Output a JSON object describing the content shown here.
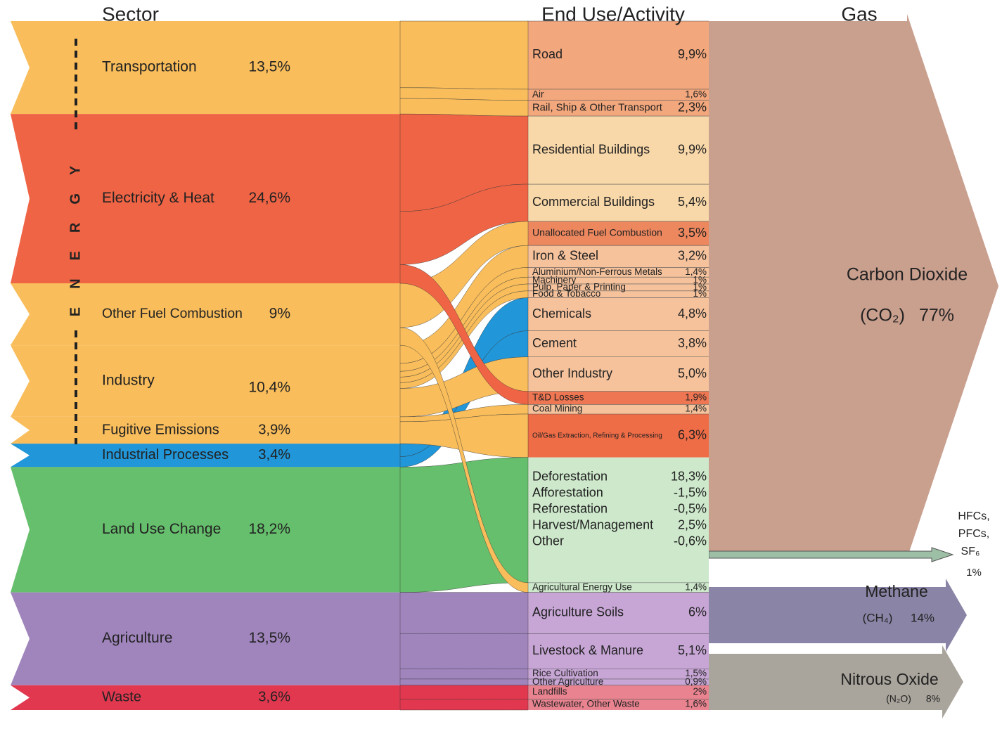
{
  "chart_data": {
    "type": "sankey",
    "titles": [
      "Sector",
      "End Use/Activity",
      "Gas"
    ],
    "energy_label": "ENERGY",
    "sectors": [
      {
        "name": "Transportation",
        "value": 13.5,
        "value_label": "13,5%",
        "color": "#f9bd5b"
      },
      {
        "name": "Electricity & Heat",
        "value": 24.6,
        "value_label": "24,6%",
        "color": "#ef6445"
      },
      {
        "name": "Other Fuel Combustion",
        "value": 9,
        "value_label": "9%",
        "color": "#f9bd5b"
      },
      {
        "name": "Industry",
        "value": 10.4,
        "value_label": "10,4%",
        "color": "#f9bd5b"
      },
      {
        "name": "Fugitive Emissions",
        "value": 3.9,
        "value_label": "3,9%",
        "color": "#f9bd5b"
      },
      {
        "name": "Industrial Processes",
        "value": 3.4,
        "value_label": "3,4%",
        "color": "#2196d8"
      },
      {
        "name": "Land Use Change",
        "value": 18.2,
        "value_label": "18,2%",
        "color": "#66bf6c"
      },
      {
        "name": "Agriculture",
        "value": 13.5,
        "value_label": "13,5%",
        "color": "#a085bd"
      },
      {
        "name": "Waste",
        "value": 3.6,
        "value_label": "3,6%",
        "color": "#e2384f"
      }
    ],
    "end_uses": [
      {
        "name": "Road",
        "value": 9.9,
        "value_label": "9,9%",
        "color": "#f2a77c"
      },
      {
        "name": "Air",
        "value": 1.6,
        "value_label": "1,6%",
        "color": "#f2a77c"
      },
      {
        "name": "Rail, Ship & Other Transport",
        "value": 2.3,
        "value_label": "2,3%",
        "color": "#f2a77c"
      },
      {
        "name": "Residential Buildings",
        "value": 9.9,
        "value_label": "9,9%",
        "color": "#f8d7a8"
      },
      {
        "name": "Commercial Buildings",
        "value": 5.4,
        "value_label": "5,4%",
        "color": "#f8d7a8"
      },
      {
        "name": "Unallocated Fuel Combustion",
        "value": 3.5,
        "value_label": "3,5%",
        "color": "#ec875e"
      },
      {
        "name": "Iron & Steel",
        "value": 3.2,
        "value_label": "3,2%",
        "color": "#f5c29c"
      },
      {
        "name": "Aluminium/Non-Ferrous Metals",
        "value": 1.4,
        "value_label": "1,4%",
        "color": "#f5c29c"
      },
      {
        "name": "Machinery",
        "value": 1,
        "value_label": "1%",
        "color": "#f5c29c"
      },
      {
        "name": "Pulp, Paper & Printing",
        "value": 1,
        "value_label": "1%",
        "color": "#f5c29c"
      },
      {
        "name": "Food & Tobacco",
        "value": 1,
        "value_label": "1%",
        "color": "#f5c29c"
      },
      {
        "name": "Chemicals",
        "value": 4.8,
        "value_label": "4,8%",
        "color": "#f5c29c"
      },
      {
        "name": "Cement",
        "value": 3.8,
        "value_label": "3,8%",
        "color": "#f5c29c"
      },
      {
        "name": "Other Industry",
        "value": 5.0,
        "value_label": "5,0%",
        "color": "#f5c29c"
      },
      {
        "name": "T&D Losses",
        "value": 1.9,
        "value_label": "1,9%",
        "color": "#ef7652"
      },
      {
        "name": "Coal Mining",
        "value": 1.4,
        "value_label": "1,4%",
        "color": "#f5c29c"
      },
      {
        "name": "Oil/Gas Extraction, Refining & Processing",
        "value": 6.3,
        "value_label": "6,3%",
        "color": "#ee6c46"
      },
      {
        "name": "Agricultural Energy Use",
        "value": 1.4,
        "value_label": "1,4%",
        "color": "#cde8cb"
      },
      {
        "name": "Agriculture Soils",
        "value": 6,
        "value_label": "6%",
        "color": "#c7a6d6"
      },
      {
        "name": "Livestock & Manure",
        "value": 5.1,
        "value_label": "5,1%",
        "color": "#c7a6d6"
      },
      {
        "name": "Rice Cultivation",
        "value": 1.5,
        "value_label": "1,5%",
        "color": "#c7a6d6"
      },
      {
        "name": "Other Agriculture",
        "value": 0.9,
        "value_label": "0,9%",
        "color": "#c7a6d6"
      },
      {
        "name": "Landfills",
        "value": 2,
        "value_label": "2%",
        "color": "#e9838f"
      },
      {
        "name": "Wastewater, Other Waste",
        "value": 1.6,
        "value_label": "1,6%",
        "color": "#e9838f"
      }
    ],
    "land_use": {
      "color": "#cde8cb",
      "items": [
        {
          "name": "Deforestation",
          "value": 18.3,
          "value_label": "18,3%"
        },
        {
          "name": "Afforestation",
          "value": -1.5,
          "value_label": "-1,5%"
        },
        {
          "name": "Reforestation",
          "value": -0.5,
          "value_label": "-0,5%"
        },
        {
          "name": "Harvest/Management",
          "value": 2.5,
          "value_label": "2,5%"
        },
        {
          "name": "Other",
          "value": -0.6,
          "value_label": "-0,6%"
        }
      ]
    },
    "gases": [
      {
        "name": "Carbon Dioxide",
        "formula": "(CO₂)",
        "value": 77,
        "value_label": "77%",
        "color": "#c99f8e"
      },
      {
        "name_lines": [
          "HFCs,",
          "PFCs,",
          "SF₆"
        ],
        "value": 1,
        "value_label": "1%",
        "color": "#9dbfa6"
      },
      {
        "name": "Methane",
        "formula": "(CH₄)",
        "value": 14,
        "value_label": "14%",
        "color": "#8a84a6"
      },
      {
        "name": "Nitrous Oxide",
        "formula": "(N₂O)",
        "value": 8,
        "value_label": "8%",
        "color": "#a9a59c"
      }
    ]
  }
}
